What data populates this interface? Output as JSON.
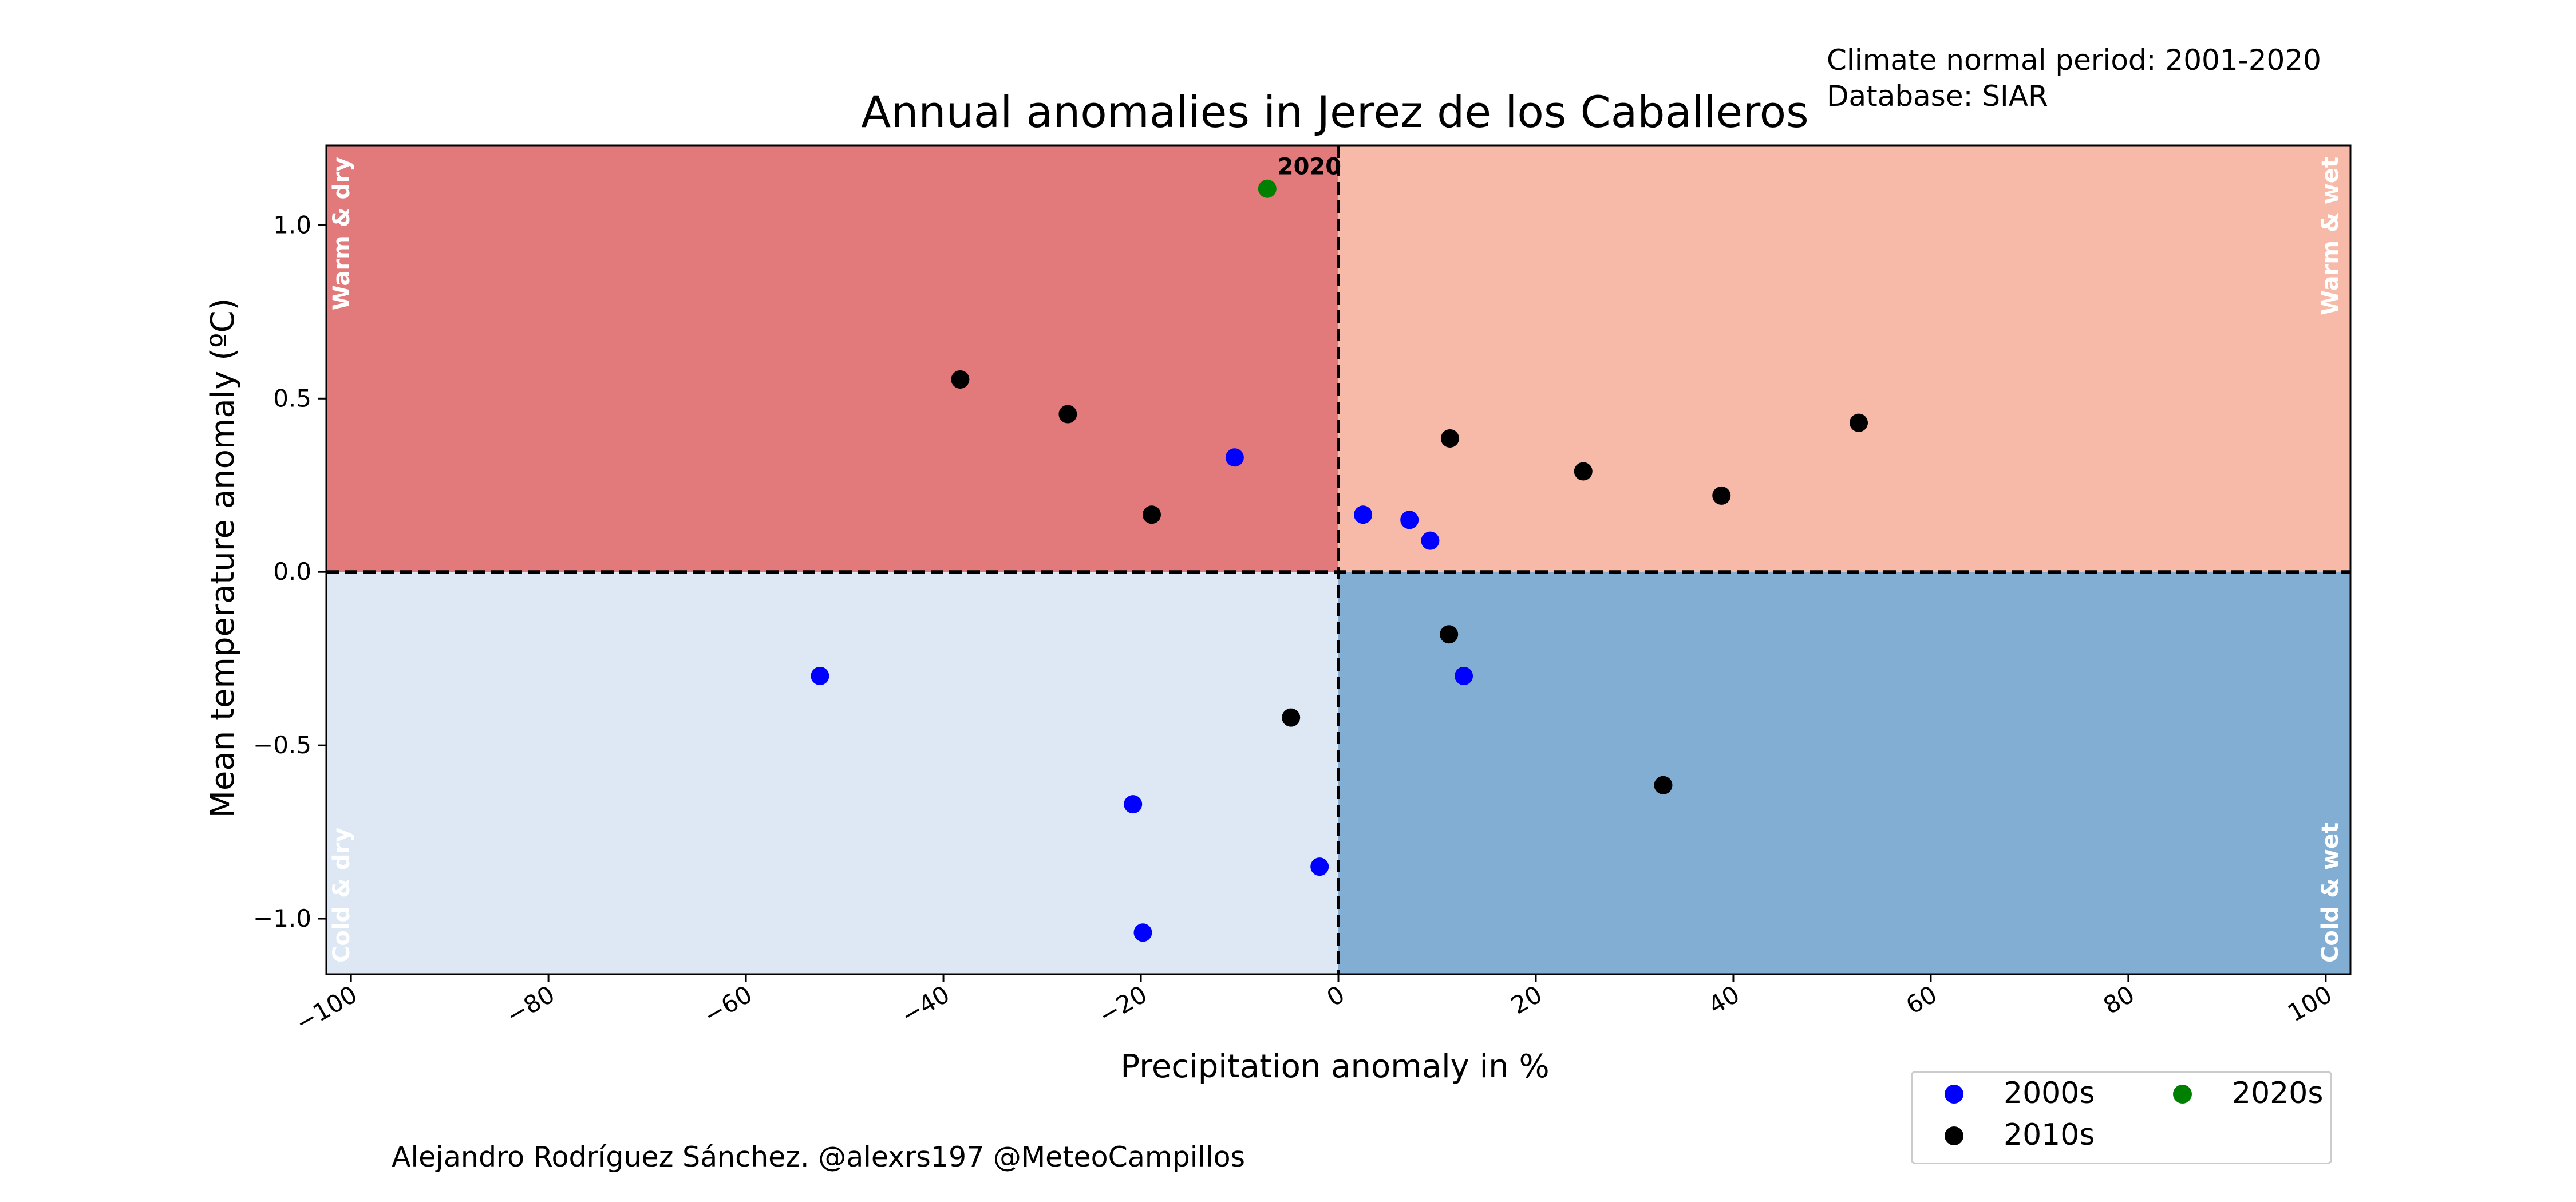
{
  "chart_data": {
    "type": "scatter",
    "title": "Annual anomalies in Jerez de los Caballeros",
    "xlabel": "Precipitation anomaly in %",
    "ylabel": "Mean temperature anomaly (ºC)",
    "xlim": [
      -102.5,
      102.5
    ],
    "ylim": [
      -1.16,
      1.23
    ],
    "x_ticks": [
      -100,
      -80,
      -60,
      -40,
      -20,
      0,
      20,
      40,
      60,
      80,
      100
    ],
    "x_tick_labels": [
      "−100",
      "−80",
      "−60",
      "−40",
      "−20",
      "0",
      "20",
      "40",
      "60",
      "80",
      "100"
    ],
    "y_ticks": [
      -1.0,
      -0.5,
      0.0,
      0.5,
      1.0
    ],
    "y_tick_labels": [
      "−1.0",
      "−0.5",
      "0.0",
      "0.5",
      "1.0"
    ],
    "grid": false,
    "quadrants": [
      {
        "label": "Warm & dry",
        "color": "#e27a7c",
        "xrange": [
          -102.5,
          0
        ],
        "yrange": [
          0,
          1.23
        ],
        "label_corner": "top-left"
      },
      {
        "label": "Warm & wet",
        "color": "#f7baa8",
        "xrange": [
          0,
          102.5
        ],
        "yrange": [
          0,
          1.23
        ],
        "label_corner": "top-right"
      },
      {
        "label": "Cold & dry",
        "color": "#dde8f4",
        "xrange": [
          -102.5,
          0
        ],
        "yrange": [
          -1.16,
          0
        ],
        "label_corner": "bottom-left"
      },
      {
        "label": "Cold & wet",
        "color": "#82aed4",
        "xrange": [
          0,
          102.5
        ],
        "yrange": [
          -1.16,
          0
        ],
        "label_corner": "bottom-right"
      }
    ],
    "series": [
      {
        "name": "2000s",
        "color": "#0000ff",
        "points": [
          {
            "x": -10.5,
            "y": 0.33
          },
          {
            "x": 2.5,
            "y": 0.165
          },
          {
            "x": 7.2,
            "y": 0.15
          },
          {
            "x": 9.3,
            "y": 0.09
          },
          {
            "x": -52.5,
            "y": -0.3
          },
          {
            "x": 12.7,
            "y": -0.3
          },
          {
            "x": -20.8,
            "y": -0.67
          },
          {
            "x": -1.9,
            "y": -0.85
          },
          {
            "x": -19.8,
            "y": -1.04
          }
        ]
      },
      {
        "name": "2010s",
        "color": "#000000",
        "points": [
          {
            "x": -38.3,
            "y": 0.555
          },
          {
            "x": -27.4,
            "y": 0.455
          },
          {
            "x": -18.9,
            "y": 0.165
          },
          {
            "x": 11.3,
            "y": 0.385
          },
          {
            "x": 24.8,
            "y": 0.29
          },
          {
            "x": 38.8,
            "y": 0.22
          },
          {
            "x": 52.7,
            "y": 0.43
          },
          {
            "x": 11.2,
            "y": -0.18
          },
          {
            "x": -4.8,
            "y": -0.42
          },
          {
            "x": 32.9,
            "y": -0.615
          }
        ]
      },
      {
        "name": "2020s",
        "color": "#008000",
        "points": [
          {
            "x": -7.2,
            "y": 1.105,
            "label": "2020"
          }
        ]
      }
    ],
    "legend_placement": "bottom-right, outside plot"
  },
  "notes": {
    "period": "Climate normal period: 2001-2020",
    "database": "Database: SIAR",
    "credit": "Alejandro Rodríguez Sánchez. @alexrs197 @MeteoCampillos"
  },
  "legend": {
    "items": [
      {
        "label": "2000s",
        "color": "#0000ff"
      },
      {
        "label": "2010s",
        "color": "#000000"
      },
      {
        "label": "2020s",
        "color": "#008000"
      }
    ]
  }
}
